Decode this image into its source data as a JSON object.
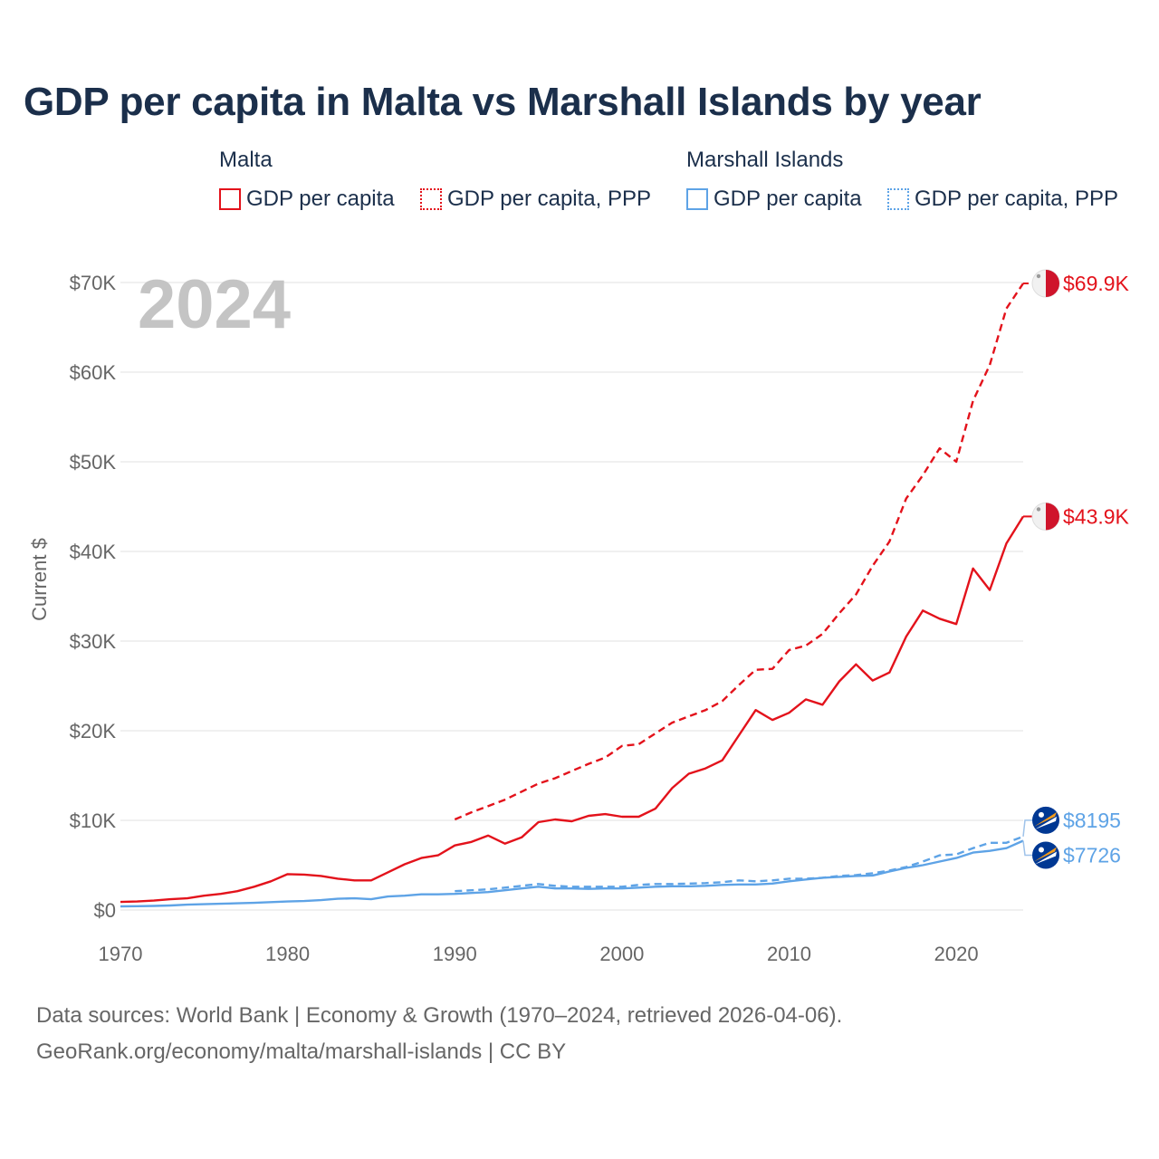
{
  "title": "GDP per capita in Malta vs Marshall Islands by year",
  "legend": {
    "malta": {
      "name": "Malta",
      "nominal_label": "GDP per capita",
      "ppp_label": "GDP per capita, PPP"
    },
    "marshall": {
      "name": "Marshall Islands",
      "nominal_label": "GDP per capita",
      "ppp_label": "GDP per capita, PPP"
    }
  },
  "colors": {
    "malta": "#e3121b",
    "marshall": "#5ea3e6",
    "grid": "#e6e6e6",
    "axis_text": "#666666",
    "title": "#1b2f4b"
  },
  "year_label": "2024",
  "footer": {
    "line1": "Data sources: World Bank | Economy & Growth (1970–2024, retrieved 2026-04-06).",
    "line2": "GeoRank.org/economy/malta/marshall-islands | CC BY"
  },
  "chart_data": {
    "type": "line",
    "xlabel": "",
    "ylabel": "Current $",
    "xlim": [
      1970,
      2024
    ],
    "ylim": [
      0,
      70000
    ],
    "x_ticks": [
      1970,
      1980,
      1990,
      2000,
      2010,
      2020
    ],
    "y_ticks": [
      0,
      10000,
      20000,
      30000,
      40000,
      50000,
      60000,
      70000
    ],
    "y_tick_labels": [
      "$0",
      "$10K",
      "$20K",
      "$30K",
      "$40K",
      "$50K",
      "$60K",
      "$70K"
    ],
    "grid": true,
    "series": [
      {
        "name": "Malta GDP per capita",
        "style": "solid",
        "color_key": "malta",
        "end_label": "$43.9K",
        "x": [
          1970,
          1971,
          1972,
          1973,
          1974,
          1975,
          1976,
          1977,
          1978,
          1979,
          1980,
          1981,
          1982,
          1983,
          1984,
          1985,
          1986,
          1987,
          1988,
          1989,
          1990,
          1991,
          1992,
          1993,
          1994,
          1995,
          1996,
          1997,
          1998,
          1999,
          2000,
          2001,
          2002,
          2003,
          2004,
          2005,
          2006,
          2007,
          2008,
          2009,
          2010,
          2011,
          2012,
          2013,
          2014,
          2015,
          2016,
          2017,
          2018,
          2019,
          2020,
          2021,
          2022,
          2023,
          2024
        ],
        "values": [
          900,
          950,
          1050,
          1200,
          1300,
          1600,
          1800,
          2100,
          2600,
          3200,
          4000,
          3950,
          3800,
          3500,
          3300,
          3300,
          4200,
          5100,
          5800,
          6100,
          7200,
          7600,
          8300,
          7400,
          8100,
          9800,
          10100,
          9900,
          10500,
          10700,
          10400,
          10400,
          11300,
          13600,
          15200,
          15800,
          16700,
          19500,
          22300,
          21200,
          22000,
          23500,
          22900,
          25500,
          27400,
          25600,
          26500,
          30500,
          33400,
          32500,
          31900,
          38100,
          35700,
          40900,
          43900
        ]
      },
      {
        "name": "Malta GDP per capita, PPP",
        "style": "dashed",
        "color_key": "malta",
        "end_label": "$69.9K",
        "x": [
          1990,
          1991,
          1992,
          1993,
          1994,
          1995,
          1996,
          1997,
          1998,
          1999,
          2000,
          2001,
          2002,
          2003,
          2004,
          2005,
          2006,
          2007,
          2008,
          2009,
          2010,
          2011,
          2012,
          2013,
          2014,
          2015,
          2016,
          2017,
          2018,
          2019,
          2020,
          2021,
          2022,
          2023,
          2024
        ],
        "values": [
          10100,
          10900,
          11600,
          12300,
          13200,
          14100,
          14700,
          15500,
          16300,
          17000,
          18300,
          18500,
          19700,
          20900,
          21600,
          22300,
          23300,
          25100,
          26800,
          26900,
          29000,
          29500,
          30800,
          33100,
          35200,
          38400,
          41100,
          45900,
          48500,
          51500,
          50000,
          56800,
          60800,
          67100,
          69900
        ]
      },
      {
        "name": "Marshall Islands GDP per capita",
        "style": "solid",
        "color_key": "marshall",
        "end_label": "$7726",
        "x": [
          1970,
          1971,
          1972,
          1973,
          1974,
          1975,
          1976,
          1977,
          1978,
          1979,
          1980,
          1981,
          1982,
          1983,
          1984,
          1985,
          1986,
          1987,
          1988,
          1989,
          1990,
          1991,
          1992,
          1993,
          1994,
          1995,
          1996,
          1997,
          1998,
          1999,
          2000,
          2001,
          2002,
          2003,
          2004,
          2005,
          2006,
          2007,
          2008,
          2009,
          2010,
          2011,
          2012,
          2013,
          2014,
          2015,
          2016,
          2017,
          2018,
          2019,
          2020,
          2021,
          2022,
          2023,
          2024
        ],
        "values": [
          400,
          420,
          450,
          500,
          600,
          650,
          700,
          750,
          800,
          880,
          950,
          1000,
          1100,
          1250,
          1300,
          1200,
          1500,
          1600,
          1750,
          1750,
          1800,
          1900,
          2000,
          2200,
          2400,
          2600,
          2400,
          2400,
          2350,
          2400,
          2400,
          2500,
          2600,
          2650,
          2650,
          2700,
          2800,
          2850,
          2850,
          2950,
          3200,
          3400,
          3600,
          3700,
          3800,
          3850,
          4300,
          4700,
          5000,
          5400,
          5800,
          6400,
          6600,
          6900,
          7726
        ]
      },
      {
        "name": "Marshall Islands GDP per capita, PPP",
        "style": "dashed",
        "color_key": "marshall",
        "end_label": "$8195",
        "x": [
          1990,
          1991,
          1992,
          1993,
          1994,
          1995,
          1996,
          1997,
          1998,
          1999,
          2000,
          2001,
          2002,
          2003,
          2004,
          2005,
          2006,
          2007,
          2008,
          2009,
          2010,
          2011,
          2012,
          2013,
          2014,
          2015,
          2016,
          2017,
          2018,
          2019,
          2020,
          2021,
          2022,
          2023,
          2024
        ],
        "values": [
          2100,
          2200,
          2300,
          2500,
          2700,
          2900,
          2700,
          2600,
          2600,
          2600,
          2600,
          2800,
          2900,
          2900,
          2950,
          3000,
          3100,
          3300,
          3200,
          3300,
          3500,
          3500,
          3600,
          3800,
          3900,
          4100,
          4400,
          4800,
          5400,
          6100,
          6200,
          6900,
          7500,
          7500,
          8195
        ]
      }
    ]
  }
}
